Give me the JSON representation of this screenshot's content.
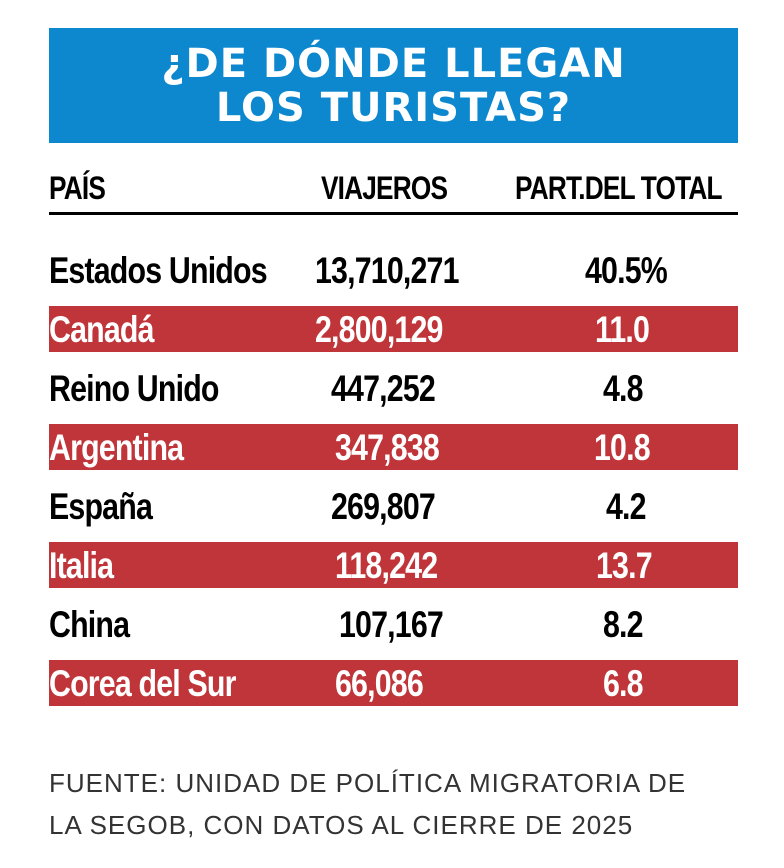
{
  "title": {
    "line1": "¿DE DÓNDE LLEGAN",
    "line2": "LOS TURISTAS?"
  },
  "headers": {
    "country": "PAÍS",
    "travelers": "VIAJEROS",
    "share": "PART.DEL TOTAL"
  },
  "rows": [
    {
      "country": "Estados Unidos",
      "travelers": "13,710,271",
      "share": "40.5%"
    },
    {
      "country": "Canadá",
      "travelers": "2,800,129",
      "share": "11.0"
    },
    {
      "country": "Reino Unido",
      "travelers": "447,252",
      "share": "4.8"
    },
    {
      "country": "Argentina",
      "travelers": "347,838",
      "share": "10.8"
    },
    {
      "country": "España",
      "travelers": "269,807",
      "share": "4.2"
    },
    {
      "country": "Italia",
      "travelers": "118,242",
      "share": "13.7"
    },
    {
      "country": "China",
      "travelers": "107,167",
      "share": "8.2"
    },
    {
      "country": "Corea del Sur",
      "travelers": "66,086",
      "share": "6.8"
    }
  ],
  "source": {
    "line1": "FUENTE: UNIDAD DE POLÍTICA MIGRATORIA DE",
    "line2": "LA SEGOB, CON DATOS AL CIERRE DE 2025"
  },
  "colors": {
    "title_bg": "#0d88cf",
    "stripe": "#c0353a"
  }
}
